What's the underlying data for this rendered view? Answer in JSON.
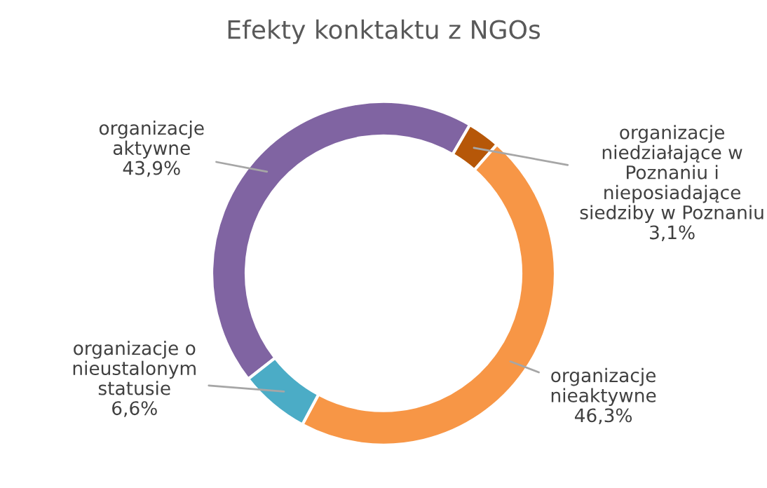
{
  "chart_data": {
    "type": "donut",
    "title": "Efekty konktaktu z NGOs",
    "categories": [
      "organizacje\naktywne",
      "organizacje\nniedziałające w\nPoznaniu i\nnieposiadające\nsiedziby w Poznaniu",
      "organizacje\nnieaktywne",
      "organizacje o\nnieustalonym\nstatusie"
    ],
    "values": [
      43.9,
      3.1,
      46.3,
      6.6
    ],
    "colors": [
      "#8064a2",
      "#b65708",
      "#f79646",
      "#4bacc6"
    ],
    "value_labels": [
      "43,9%",
      "3,1%",
      "46,3%",
      "6,6%"
    ],
    "legend": false
  }
}
